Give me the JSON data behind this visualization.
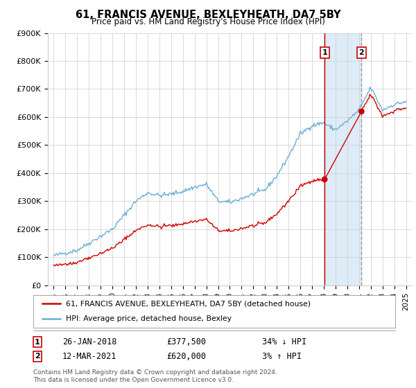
{
  "title": "61, FRANCIS AVENUE, BEXLEYHEATH, DA7 5BY",
  "subtitle": "Price paid vs. HM Land Registry's House Price Index (HPI)",
  "ylim": [
    0,
    900000
  ],
  "yticks": [
    0,
    100000,
    200000,
    300000,
    400000,
    500000,
    600000,
    700000,
    800000,
    900000
  ],
  "ytick_labels": [
    "£0",
    "£100K",
    "£200K",
    "£300K",
    "£400K",
    "£500K",
    "£600K",
    "£700K",
    "£800K",
    "£900K"
  ],
  "xlim_start": 1994.5,
  "xlim_end": 2025.5,
  "xtick_years": [
    1995,
    1996,
    1997,
    1998,
    1999,
    2000,
    2001,
    2002,
    2003,
    2004,
    2005,
    2006,
    2007,
    2008,
    2009,
    2010,
    2011,
    2012,
    2013,
    2014,
    2015,
    2016,
    2017,
    2018,
    2019,
    2020,
    2021,
    2022,
    2023,
    2024,
    2025
  ],
  "hpi_color": "#6baed6",
  "price_color": "#cc0000",
  "vline1_color": "#cc0000",
  "vline2_color": "#999999",
  "shade_color": "#d6e8f7",
  "transaction1": {
    "date": "26-JAN-2018",
    "price": 377500,
    "pct": "34%",
    "dir": "↓",
    "label": "1",
    "year": 2018.07
  },
  "transaction2": {
    "date": "12-MAR-2021",
    "price": 620000,
    "pct": "3%",
    "dir": "↑",
    "label": "2",
    "year": 2021.21
  },
  "legend_line1": "61, FRANCIS AVENUE, BEXLEYHEATH, DA7 5BY (detached house)",
  "legend_line2": "HPI: Average price, detached house, Bexley",
  "footer": "Contains HM Land Registry data © Crown copyright and database right 2024.\nThis data is licensed under the Open Government Licence v3.0.",
  "bg_color": "#ffffff",
  "grid_color": "#cccccc"
}
